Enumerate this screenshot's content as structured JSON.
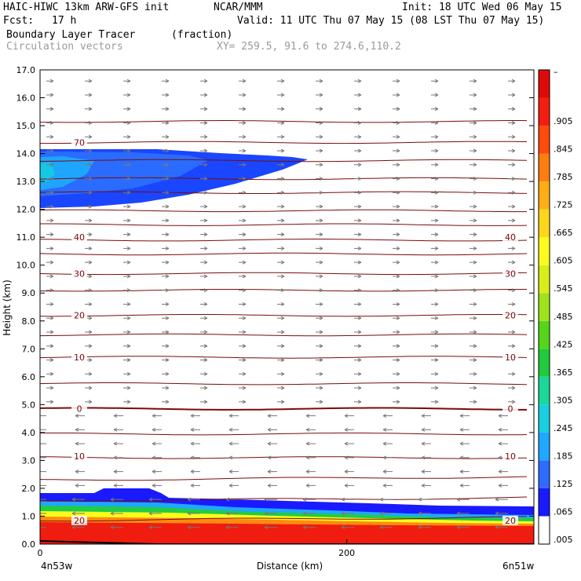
{
  "header": {
    "model": "HAIC-HIWC 13km ARW-GFS init",
    "org": "NCAR/MMM",
    "init": "Init: 18 UTC Wed 06 May 15",
    "fcst_label": "Fcst:",
    "fcst_value": "17 h",
    "valid": "Valid: 11 UTC Thu 07 May 15 (08 LST Thu 07 May 15)",
    "field1": "Boundary Layer Tracer",
    "field1_units": "(fraction)",
    "field2": "Circulation vectors",
    "xy_range": "XY= 259.5, 91.6 to 274.6,110.2"
  },
  "chart_data": {
    "type": "area",
    "title": "Boundary Layer Tracer",
    "xlabel": "Distance (km)",
    "ylabel": "Height (km)",
    "xlim": [
      0,
      322
    ],
    "ylim": [
      0,
      17
    ],
    "x_ticks": [
      {
        "value": 0,
        "label": "0"
      },
      {
        "value": 200,
        "label": "200"
      }
    ],
    "x_end_labels": {
      "left": "4n53w",
      "right": "6n51w"
    },
    "y_ticks": [
      "0.0",
      "1.0",
      "2.0",
      "3.0",
      "4.0",
      "5.0",
      "6.0",
      "7.0",
      "8.0",
      "9.0",
      "10.0",
      "11.0",
      "12.0",
      "13.0",
      "14.0",
      "15.0",
      "16.0",
      "17.0"
    ],
    "colorbar": {
      "labels": [
        ".005",
        ".065",
        ".125",
        ".185",
        ".245",
        ".305",
        ".365",
        ".425",
        ".485",
        ".545",
        ".605",
        ".665",
        ".725",
        ".785",
        ".845",
        ".905",
        "–"
      ],
      "colors": [
        "#ffffff",
        "#1a1aff",
        "#2f6bff",
        "#1fa8ff",
        "#18d0e0",
        "#1ad89a",
        "#21c93c",
        "#55d51a",
        "#9ee21a",
        "#d8ee18",
        "#fbfb1c",
        "#ffd61a",
        "#ffad14",
        "#ff7d10",
        "#ff4a0e",
        "#f51d0f",
        "#e00a0a"
      ]
    },
    "contours": [
      {
        "label": "70",
        "y": 14.4
      },
      {
        "label": "40",
        "y": 11.0
      },
      {
        "label": "30",
        "y": 9.7
      },
      {
        "label": "20",
        "y": 8.2
      },
      {
        "label": "10",
        "y": 6.7
      },
      {
        "label": "0",
        "y": 4.85
      },
      {
        "label": "10",
        "y": 3.15
      },
      {
        "label": "20",
        "y": 0.85
      }
    ],
    "wind_regime": {
      "westerly_above_km": 4.8,
      "easterly_below_km": 4.8
    },
    "tracer_layers": [
      {
        "name": "upper plume",
        "base_km": 12.2,
        "top_km": 14.4,
        "x_end_km": 172
      },
      {
        "name": "boundary layer",
        "base_km": 0.0,
        "top_km": 1.9,
        "x_end_km": 322
      }
    ]
  }
}
